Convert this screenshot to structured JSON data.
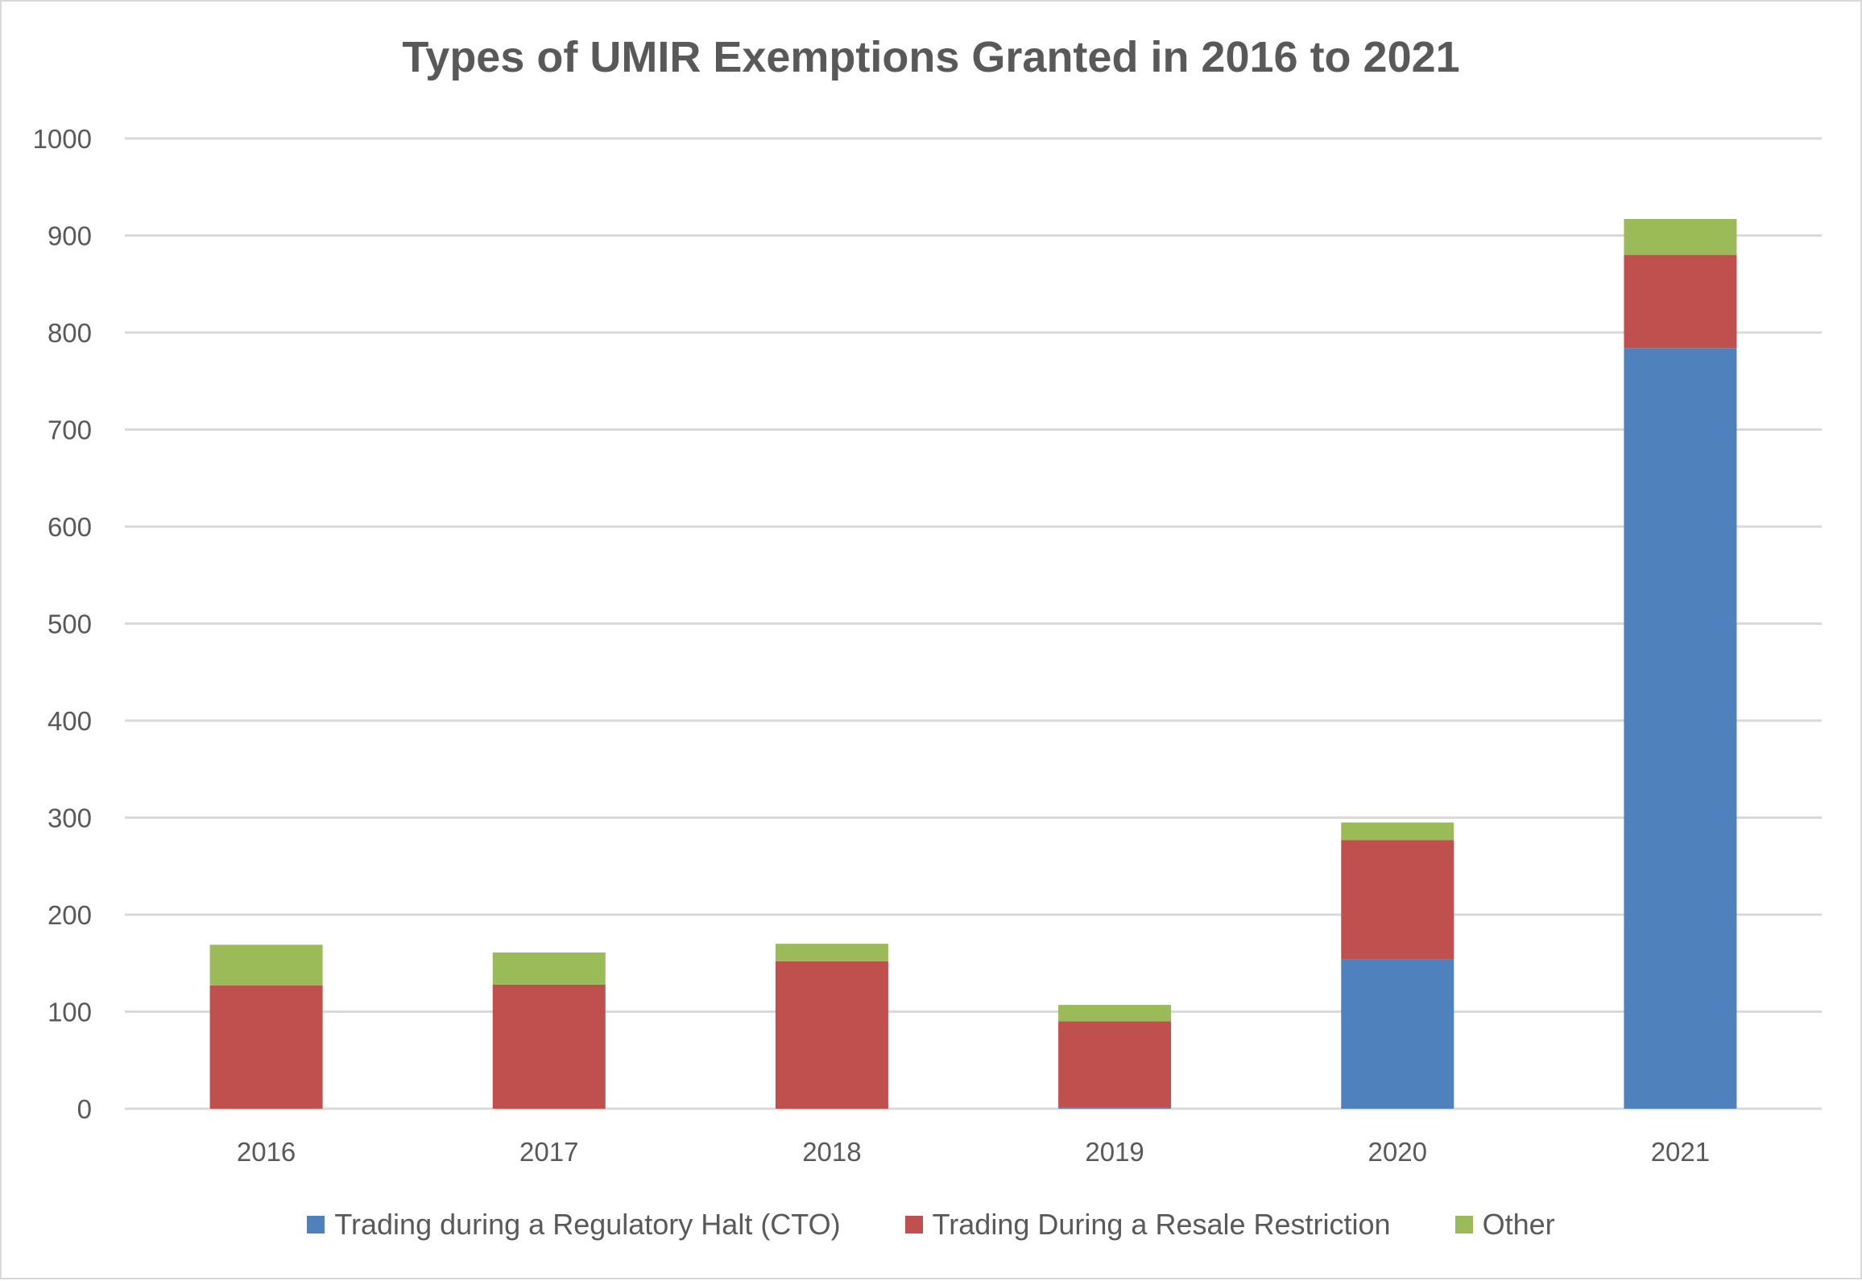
{
  "chart_data": {
    "type": "bar",
    "stacked": true,
    "title": "Types of UMIR Exemptions Granted in 2016 to 2021",
    "xlabel": "",
    "ylabel": "",
    "categories": [
      "2016",
      "2017",
      "2018",
      "2019",
      "2020",
      "2021"
    ],
    "ylim": [
      0,
      1000
    ],
    "yticks": [
      0,
      100,
      200,
      300,
      400,
      500,
      600,
      700,
      800,
      900,
      1000
    ],
    "grid": true,
    "legend_position": "bottom",
    "series": [
      {
        "name": "Trading during a Regulatory Halt (CTO)",
        "color": "#4f81bd",
        "values": [
          0,
          0,
          0,
          1,
          154,
          784
        ]
      },
      {
        "name": "Trading During a Resale Restriction",
        "color": "#c0504d",
        "values": [
          127,
          128,
          152,
          89,
          123,
          96
        ]
      },
      {
        "name": "Other",
        "color": "#9bbb59",
        "values": [
          42,
          33,
          18,
          17,
          18,
          37
        ]
      }
    ]
  }
}
